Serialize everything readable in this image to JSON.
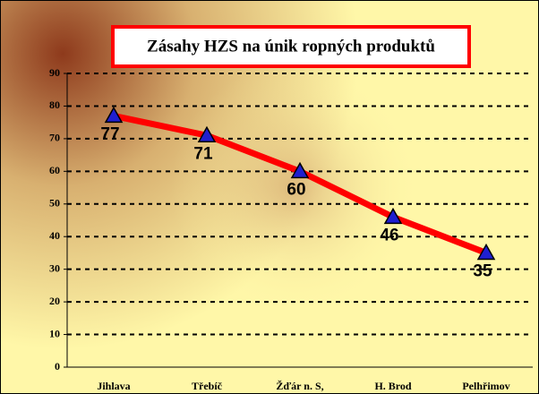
{
  "chart_data": {
    "type": "line",
    "title": "Zásahy HZS na únik ropných produktů",
    "categories": [
      "Jihlava",
      "Třebíč",
      "Žďár n. S,",
      "H. Brod",
      "Pelhřimov"
    ],
    "series": [
      {
        "name": "Zásahy",
        "color": "#ff0000",
        "marker_color": "#1f1fd0",
        "values": [
          77,
          71,
          60,
          46,
          35
        ]
      }
    ],
    "ylim": [
      0,
      90
    ],
    "yticks": [
      0,
      10,
      20,
      30,
      40,
      50,
      60,
      70,
      80,
      90
    ],
    "grid": true
  }
}
